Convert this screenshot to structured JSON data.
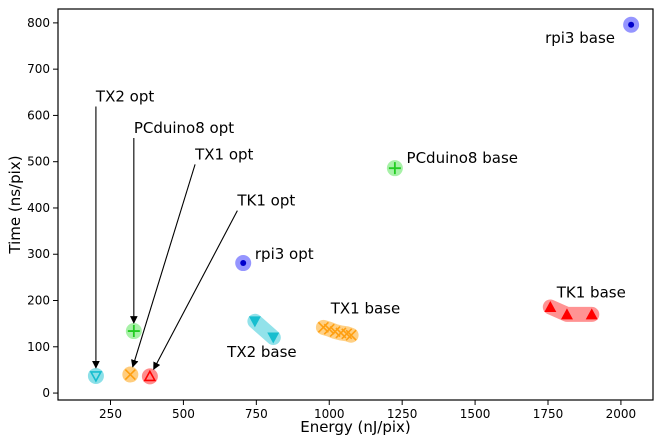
{
  "chart_data": {
    "type": "scatter",
    "xlabel": "Energy (nJ/pix)",
    "ylabel": "Time (ns/pix)",
    "xlim": [
      70,
      2110
    ],
    "ylim": [
      -15,
      830
    ],
    "xticks": [
      250,
      500,
      750,
      1000,
      1250,
      1500,
      1750,
      2000
    ],
    "yticks": [
      0,
      100,
      200,
      300,
      400,
      500,
      600,
      700,
      800
    ],
    "series": [
      {
        "id": "tx2-opt",
        "marker": "triangle-down-open",
        "color": "#17becf",
        "halo": "#7fdde6",
        "points": [
          [
            200,
            37
          ]
        ]
      },
      {
        "id": "pcduino8-opt",
        "marker": "plus",
        "color": "#22cc22",
        "halo": "#9df09d",
        "points": [
          [
            330,
            134
          ]
        ]
      },
      {
        "id": "tx1-opt",
        "marker": "x",
        "color": "#ff9f10",
        "halo": "#ffc870",
        "points": [
          [
            318,
            40
          ]
        ]
      },
      {
        "id": "tk1-opt",
        "marker": "triangle-up-open",
        "color": "#ff0000",
        "halo": "#ff8080",
        "points": [
          [
            385,
            36
          ]
        ]
      },
      {
        "id": "rpi3-opt",
        "marker": "circle-dot",
        "color": "#0000cc",
        "halo": "#8a8aff",
        "points": [
          [
            705,
            281
          ]
        ]
      },
      {
        "id": "pcduino8-base",
        "marker": "plus",
        "color": "#22cc22",
        "halo": "#9df09d",
        "points": [
          [
            1225,
            486
          ]
        ]
      },
      {
        "id": "rpi3-base",
        "marker": "circle-dot",
        "color": "#0000cc",
        "halo": "#8a8aff",
        "points": [
          [
            2035,
            796
          ]
        ]
      },
      {
        "id": "tx2-base",
        "marker": "triangle-down",
        "color": "#17becf",
        "halo": "#7fdde6",
        "points": [
          [
            745,
            155
          ],
          [
            808,
            120
          ]
        ]
      },
      {
        "id": "tx1-base",
        "marker": "x",
        "color": "#ff9f10",
        "halo": "#ffc870",
        "points": [
          [
            980,
            142
          ],
          [
            1000,
            138
          ],
          [
            1020,
            133
          ],
          [
            1040,
            130
          ],
          [
            1060,
            128
          ],
          [
            1075,
            125
          ]
        ]
      },
      {
        "id": "tk1-base",
        "marker": "triangle-up",
        "color": "#ff0000",
        "halo": "#ff8080",
        "points": [
          [
            1758,
            186
          ],
          [
            1815,
            170
          ],
          [
            1900,
            170
          ]
        ]
      }
    ],
    "annotations": [
      {
        "id": "tx2-opt",
        "text": "TX2 opt",
        "target": [
          200,
          37
        ],
        "text_pos": [
          200,
          630
        ],
        "arrow": true
      },
      {
        "id": "pcduino8-opt",
        "text": "PCduino8 opt",
        "target": [
          330,
          134
        ],
        "text_pos": [
          330,
          562
        ],
        "arrow": true
      },
      {
        "id": "tx1-opt",
        "text": "TX1 opt",
        "target": [
          318,
          40
        ],
        "text_pos": [
          540,
          505
        ],
        "arrow": true
      },
      {
        "id": "tk1-opt",
        "text": "TK1 opt",
        "target": [
          385,
          36
        ],
        "text_pos": [
          685,
          405
        ],
        "arrow": true
      },
      {
        "id": "rpi3-opt",
        "text": "rpi3 opt",
        "text_pos": [
          745,
          290
        ],
        "arrow": false
      },
      {
        "id": "pcduino8-base",
        "text": "PCduino8 base",
        "text_pos": [
          1265,
          497
        ],
        "arrow": false
      },
      {
        "id": "rpi3-base",
        "text": "rpi3 base",
        "text_pos": [
          1740,
          757
        ],
        "arrow": false
      },
      {
        "id": "tx2-base",
        "text": "TX2 base",
        "text_pos": [
          650,
          78
        ],
        "arrow": false
      },
      {
        "id": "tx1-base",
        "text": "TX1 base",
        "text_pos": [
          1005,
          172
        ],
        "arrow": false
      },
      {
        "id": "tk1-base",
        "text": "TK1 base",
        "text_pos": [
          1780,
          206
        ],
        "arrow": false
      }
    ]
  }
}
